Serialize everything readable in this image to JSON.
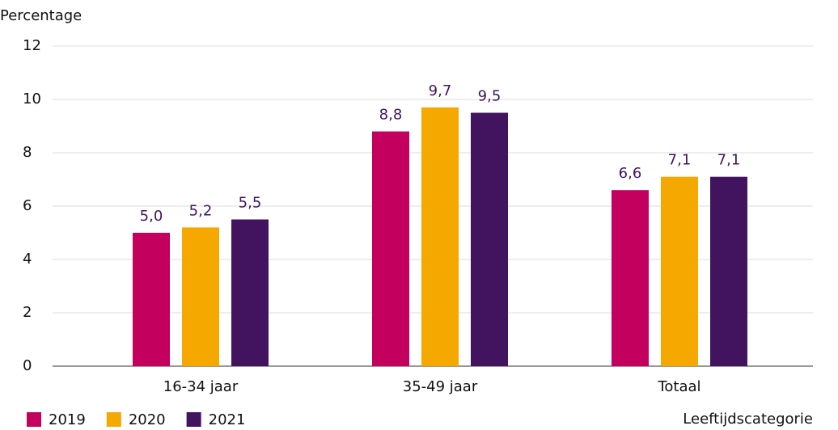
{
  "chart_data": {
    "type": "bar",
    "y_label": "Percentage",
    "x_label": "Leeftijdscategorie",
    "categories": [
      "16-34 jaar",
      "35-49 jaar",
      "Totaal"
    ],
    "series": [
      {
        "name": "2019",
        "color": "#c3005e",
        "values": [
          5.0,
          8.8,
          6.6
        ],
        "value_labels": [
          "5,0",
          "8,8",
          "6,6"
        ]
      },
      {
        "name": "2020",
        "color": "#f5a800",
        "values": [
          5.2,
          9.7,
          7.1
        ],
        "value_labels": [
          "5,2",
          "9,7",
          "7,1"
        ]
      },
      {
        "name": "2021",
        "color": "#42145f",
        "values": [
          5.5,
          9.5,
          7.1
        ],
        "value_labels": [
          "5,5",
          "9,5",
          "7,1"
        ]
      }
    ],
    "ylim": [
      0,
      12
    ],
    "yticks": [
      0,
      2,
      4,
      6,
      8,
      10,
      12
    ],
    "grid": true,
    "legend": "bottom-left"
  }
}
